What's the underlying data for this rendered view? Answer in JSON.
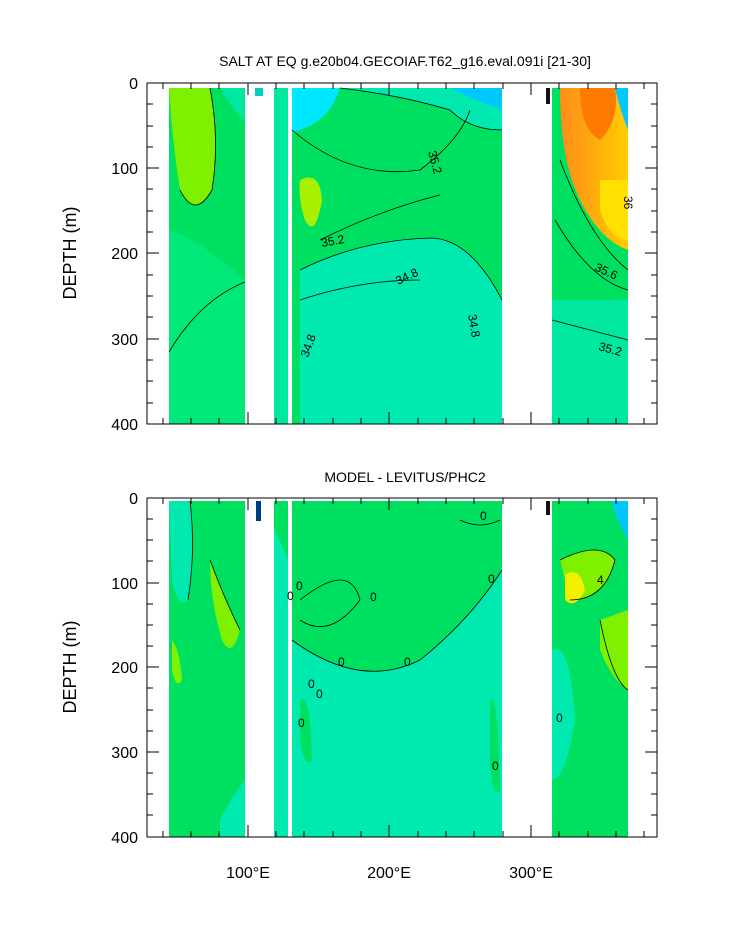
{
  "chart_data": [
    {
      "type": "contour",
      "title": "SALT AT EQ g.e20b04.GECOIAF.T62_g16.eval.091i [21-30]",
      "ylabel": "DEPTH (m)",
      "xlabel": "",
      "xlim": [
        30,
        390
      ],
      "ylim": [
        400,
        0
      ],
      "y_ticks": [
        "0",
        "100",
        "200",
        "300",
        "400"
      ],
      "x_ticks": [
        "100°E",
        "200°E",
        "300°E"
      ],
      "contour_labels": [
        "35.2",
        "35.2",
        "34.8",
        "34.8",
        "34.8",
        "36",
        "35.6",
        "35.2"
      ],
      "land_gaps_lon": [
        [
          97,
          118
        ],
        [
          128,
          131
        ],
        [
          278,
          313
        ]
      ],
      "colors": {
        "low": "#00f5d0",
        "mid": "#00e060",
        "high": "#ffd400",
        "max": "#ff7a00",
        "deep_low": "#003a80"
      }
    },
    {
      "type": "contour",
      "title": "MODEL - LEVITUS/PHC2",
      "ylabel": "DEPTH (m)",
      "xlabel": "",
      "xlim": [
        30,
        390
      ],
      "ylim": [
        400,
        0
      ],
      "y_ticks": [
        "0",
        "100",
        "200",
        "300",
        "400"
      ],
      "x_ticks": [
        "100°E",
        "200°E",
        "300°E"
      ],
      "contour_labels": [
        "0",
        "0",
        "0",
        "0",
        "0",
        "0",
        "0",
        "0",
        "0",
        "0",
        "0",
        "4"
      ],
      "land_gaps_lon": [
        [
          97,
          118
        ],
        [
          128,
          131
        ],
        [
          278,
          313
        ]
      ],
      "colors": {
        "zero": "#00eab0",
        "pos": "#00e060",
        "hi": "#a8f000",
        "neg": "#003a80"
      }
    }
  ]
}
